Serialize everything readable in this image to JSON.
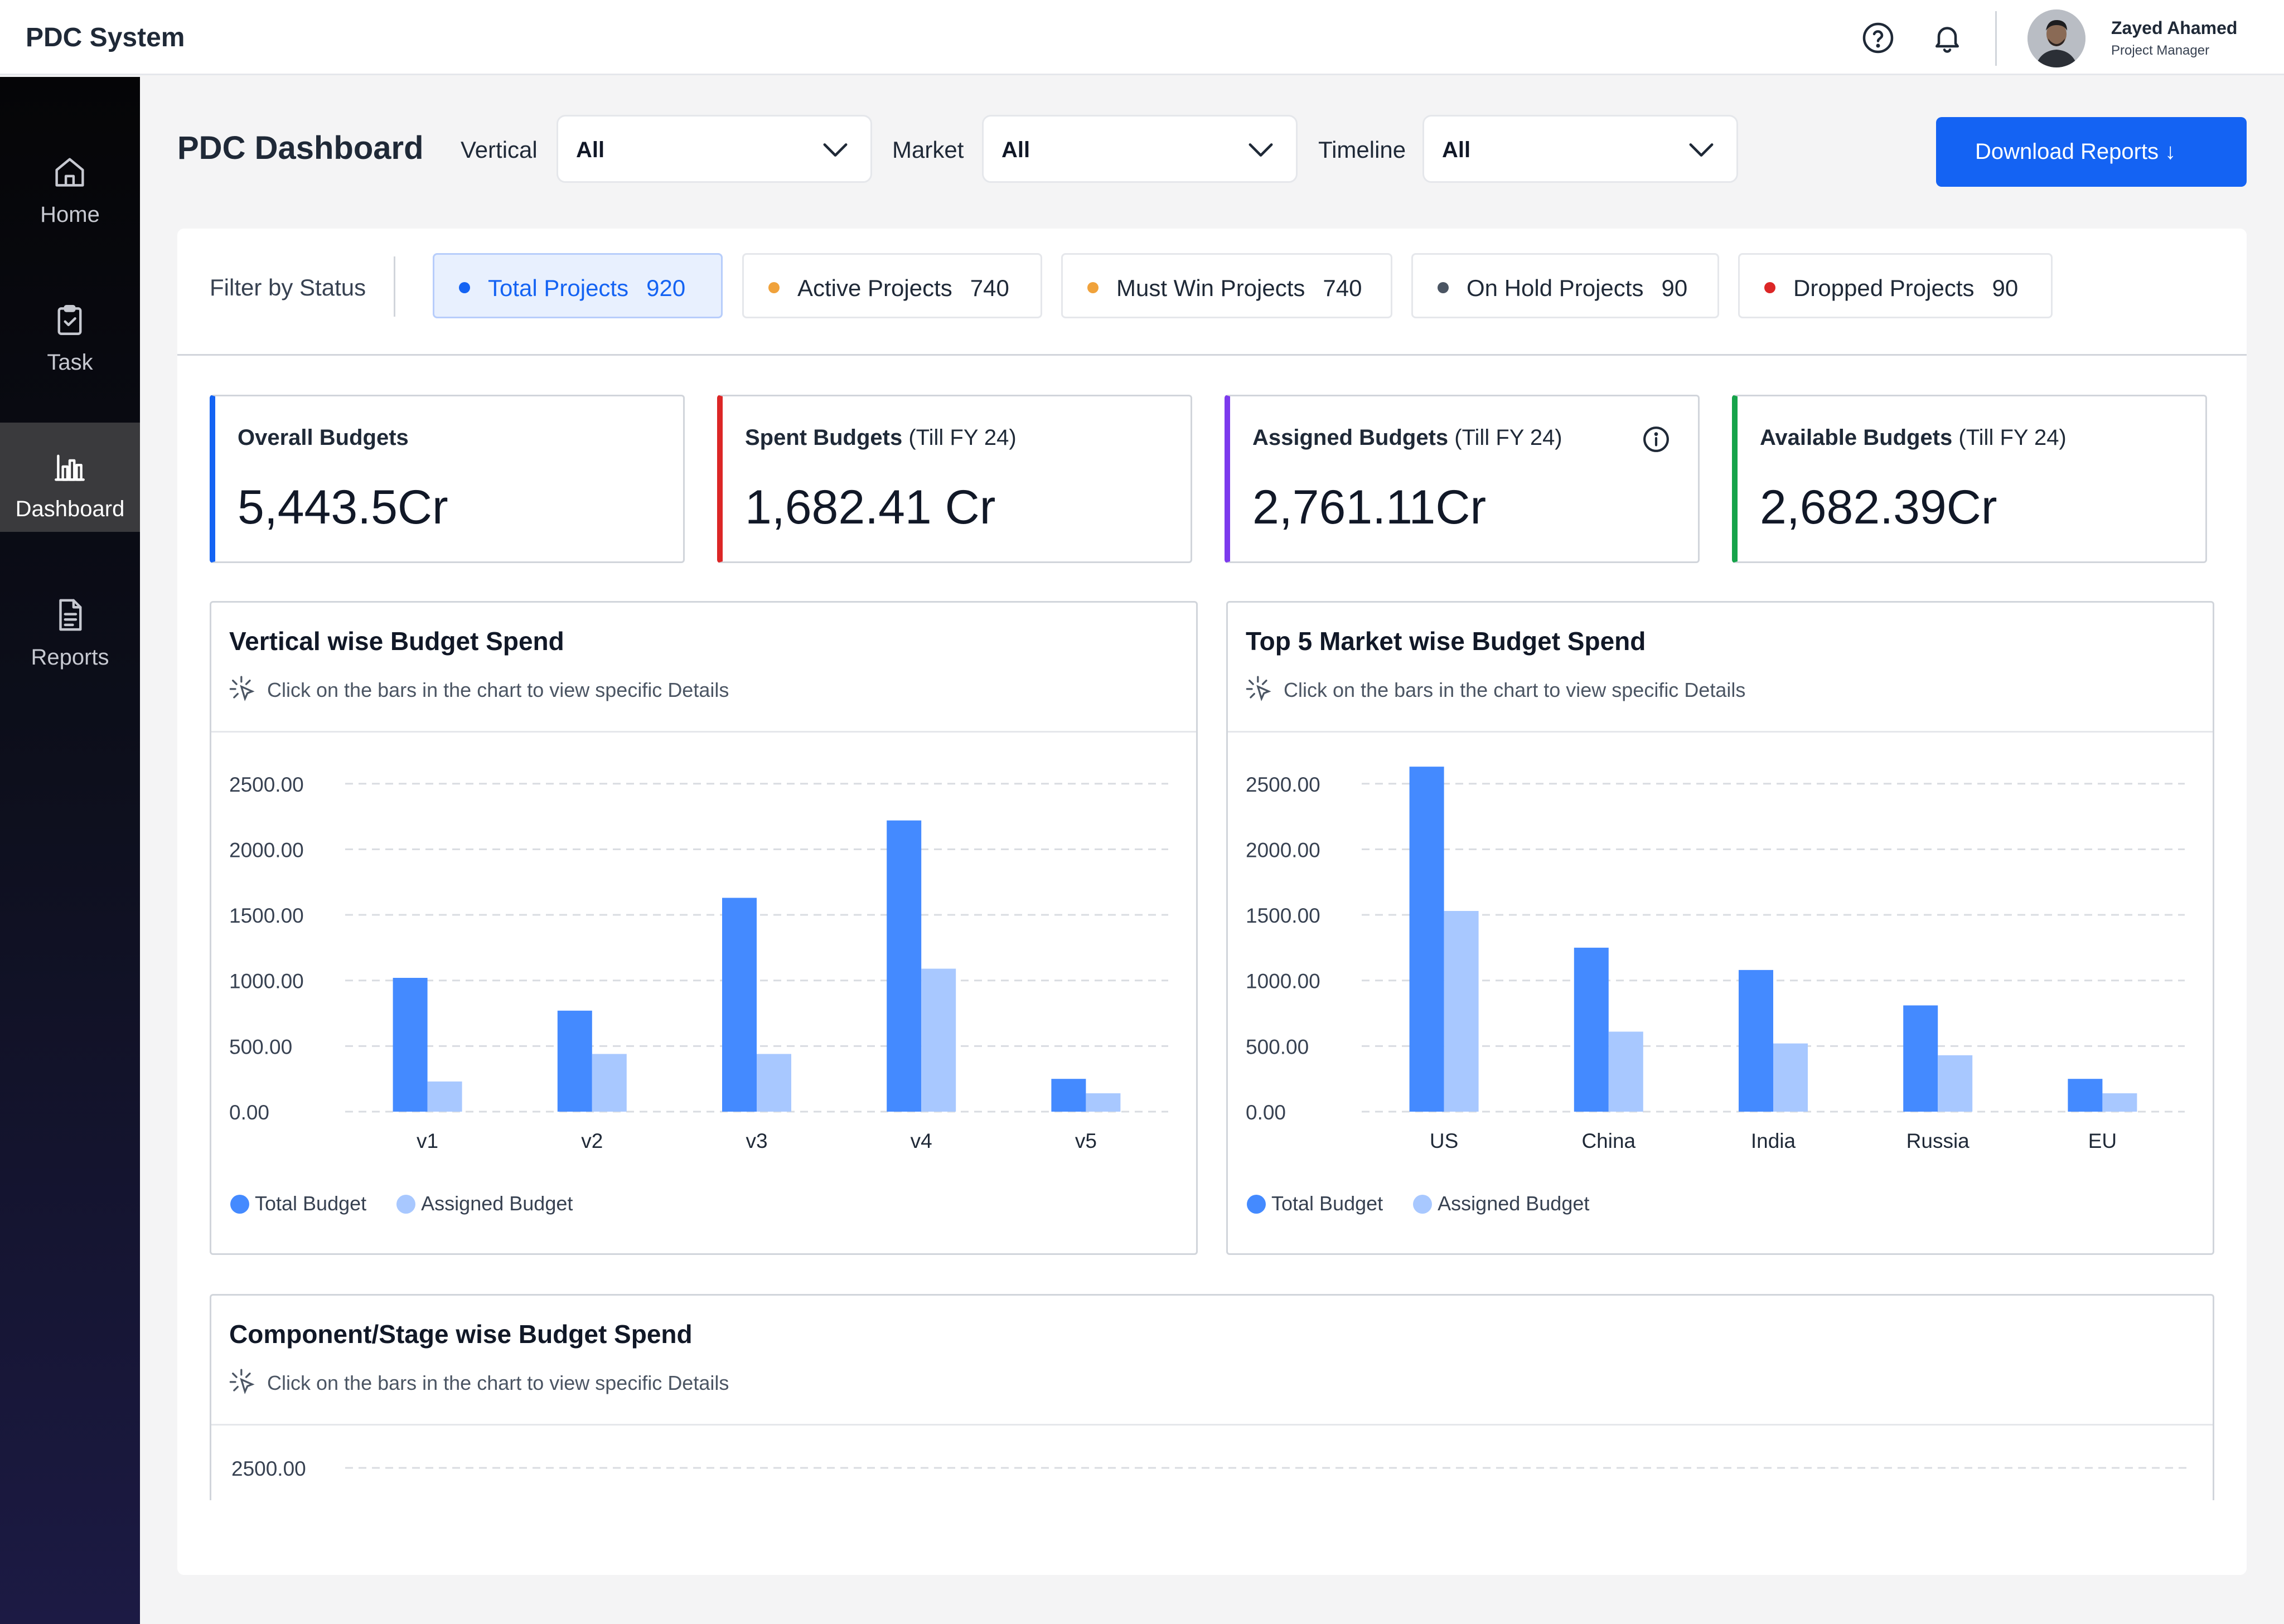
{
  "header": {
    "app_title": "PDC System",
    "user": {
      "name": "Zayed Ahamed",
      "role": "Project Manager"
    }
  },
  "sidebar": {
    "items": [
      {
        "label": "Home",
        "icon": "home-icon",
        "active": false
      },
      {
        "label": "Task",
        "icon": "clipboard-check-icon",
        "active": false
      },
      {
        "label": "Dashboard",
        "icon": "bar-chart-icon",
        "active": true
      },
      {
        "label": "Reports",
        "icon": "document-icon",
        "active": false
      }
    ]
  },
  "page": {
    "title": "PDC Dashboard",
    "filters": {
      "vertical": {
        "label": "Vertical",
        "value": "All"
      },
      "market": {
        "label": "Market",
        "value": "All"
      },
      "timeline": {
        "label": "Timeline",
        "value": "All"
      }
    },
    "download_label": "Download Reports ↓"
  },
  "status": {
    "label": "Filter by Status",
    "pills": [
      {
        "label": "Total Projects",
        "count": "920",
        "color": "#1463f3",
        "active": true
      },
      {
        "label": "Active Projects",
        "count": "740",
        "color": "#f0a23b",
        "active": false
      },
      {
        "label": "Must Win Projects",
        "count": "740",
        "color": "#f0a23b",
        "active": false
      },
      {
        "label": "On Hold Projects",
        "count": "90",
        "color": "#4b5563",
        "active": false
      },
      {
        "label": "Dropped Projects",
        "count": "90",
        "color": "#dc2626",
        "active": false
      }
    ]
  },
  "budgets": [
    {
      "title": "Overall Budgets",
      "suffix": "",
      "value": "5,443.5Cr",
      "accent": "#1463f3"
    },
    {
      "title": "Spent Budgets",
      "suffix": " (Till FY 24)",
      "value": "1,682.41 Cr",
      "accent": "#dc2626"
    },
    {
      "title": "Assigned Budgets",
      "suffix": " (Till FY 24)",
      "value": "2,761.11Cr",
      "accent": "#7c3aed"
    },
    {
      "title": "Available Budgets",
      "suffix": " (Till FY 24)",
      "value": "2,682.39Cr",
      "accent": "#16a34a"
    }
  ],
  "charts": {
    "hint": "Click on the bars in the chart to view specific Details",
    "legend": {
      "total": "Total Budget",
      "assigned": "Assigned Budget"
    },
    "colors": {
      "total": "#448aff",
      "assigned": "#a8c8ff"
    },
    "vertical_title": "Vertical wise Budget Spend",
    "market_title": "Top 5 Market wise Budget Spend",
    "component_title": "Component/Stage wise Budget Spend"
  },
  "chart_data": [
    {
      "type": "bar",
      "title": "Vertical wise Budget Spend",
      "categories": [
        "v1",
        "v2",
        "v3",
        "v4",
        "v5"
      ],
      "series": [
        {
          "name": "Total Budget",
          "values": [
            1020,
            770,
            1630,
            2220,
            250
          ]
        },
        {
          "name": "Assigned Budget",
          "values": [
            230,
            440,
            440,
            1090,
            140
          ]
        }
      ],
      "yticks": [
        "0.00",
        "500.00",
        "1000.00",
        "1500.00",
        "2000.00",
        "2500.00"
      ],
      "ylim": [
        0,
        2550
      ],
      "legend": "bottom-left",
      "grid": true
    },
    {
      "type": "bar",
      "title": "Top 5 Market wise Budget Spend",
      "categories": [
        "US",
        "China",
        "India",
        "Russia",
        "EU"
      ],
      "series": [
        {
          "name": "Total Budget",
          "values": [
            2630,
            1250,
            1080,
            810,
            250
          ]
        },
        {
          "name": "Assigned Budget",
          "values": [
            1530,
            610,
            520,
            430,
            140
          ]
        }
      ],
      "yticks": [
        "0.00",
        "500.00",
        "1000.00",
        "1500.00",
        "2000.00",
        "2500.00"
      ],
      "ylim": [
        0,
        2550
      ],
      "legend": "bottom-left",
      "grid": true
    },
    {
      "type": "bar",
      "title": "Component/Stage wise Budget Spend",
      "categories": [],
      "series": [],
      "yticks": [
        "2500.00"
      ],
      "grid": true
    }
  ]
}
